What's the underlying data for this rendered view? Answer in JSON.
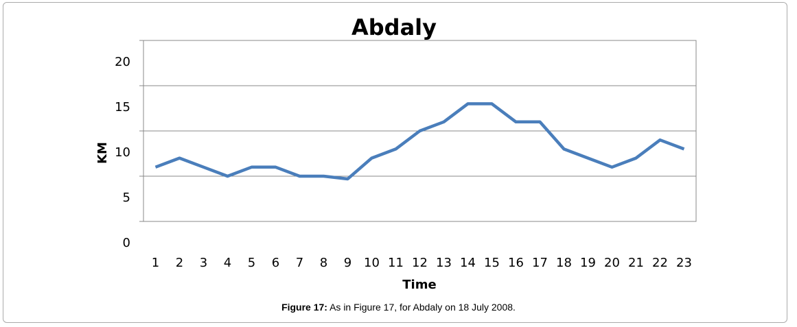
{
  "chart_data": {
    "type": "line",
    "title": "Abdaly",
    "x_label": "Time",
    "y_label": "KM",
    "categories": [
      "1",
      "2",
      "3",
      "4",
      "5",
      "6",
      "7",
      "8",
      "9",
      "10",
      "11",
      "12",
      "13",
      "14",
      "15",
      "16",
      "17",
      "18",
      "19",
      "20",
      "21",
      "22",
      "23"
    ],
    "series": [
      {
        "name": "Abdaly",
        "color": "#4a7ebb",
        "values": [
          6,
          7,
          6,
          5,
          6,
          6,
          5,
          5,
          4.7,
          7,
          8,
          10,
          11,
          13,
          13,
          11,
          11,
          8,
          7,
          6,
          7,
          9,
          8
        ]
      }
    ],
    "ylim": [
      0,
      20
    ],
    "yticks": [
      0,
      5,
      10,
      15,
      20
    ],
    "grid": true
  },
  "caption": {
    "label": "Figure 17:",
    "text": "As in Figure 17, for Abdaly on 18 July 2008."
  }
}
